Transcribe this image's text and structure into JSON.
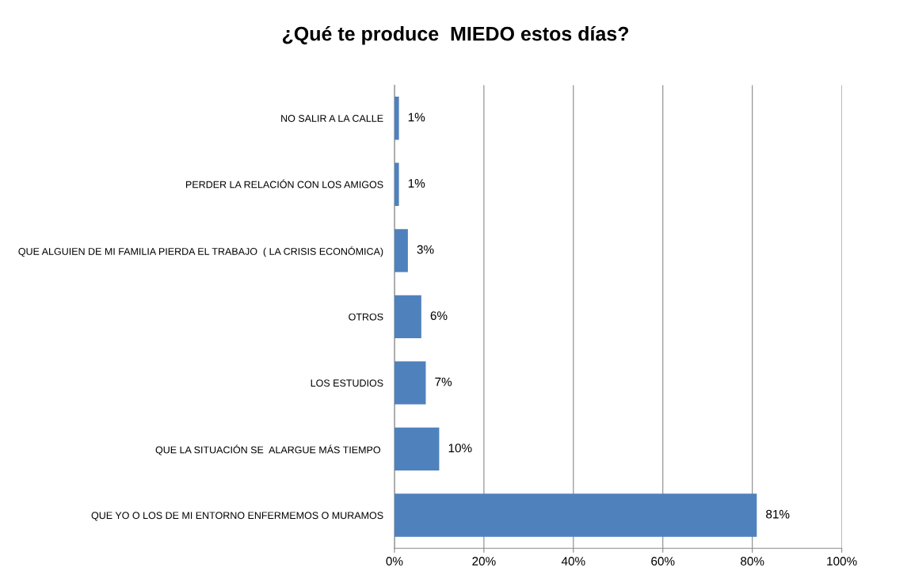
{
  "chart_data": {
    "type": "bar",
    "orientation": "horizontal",
    "title": "¿Qué te produce  MIEDO estos días?",
    "categories": [
      "NO SALIR A LA CALLE",
      "PERDER LA RELACIÓN CON LOS AMIGOS",
      "QUE ALGUIEN DE MI FAMILIA PIERDA EL TRABAJO  ( LA CRISIS ECONÓMICA)",
      "OTROS",
      "LOS ESTUDIOS",
      "QUE LA SITUACIÓN SE  ALARGUE MÁS TIEMPO ",
      "QUE YO O LOS DE MI ENTORNO ENFERMEMOS O MURAMOS"
    ],
    "values": [
      1,
      1,
      3,
      6,
      7,
      10,
      81
    ],
    "value_labels": [
      "1%",
      "1%",
      "3%",
      "6%",
      "7%",
      "10%",
      "81%"
    ],
    "color": "#4f81bd",
    "xlim": [
      0,
      100
    ],
    "xticks": [
      {
        "value": 0,
        "label": "0%"
      },
      {
        "value": 20,
        "label": "20%"
      },
      {
        "value": 40,
        "label": "40%"
      },
      {
        "value": 60,
        "label": "60%"
      },
      {
        "value": 80,
        "label": "80%"
      },
      {
        "value": 100,
        "label": "100%"
      }
    ],
    "grid": "x",
    "legend": false
  }
}
